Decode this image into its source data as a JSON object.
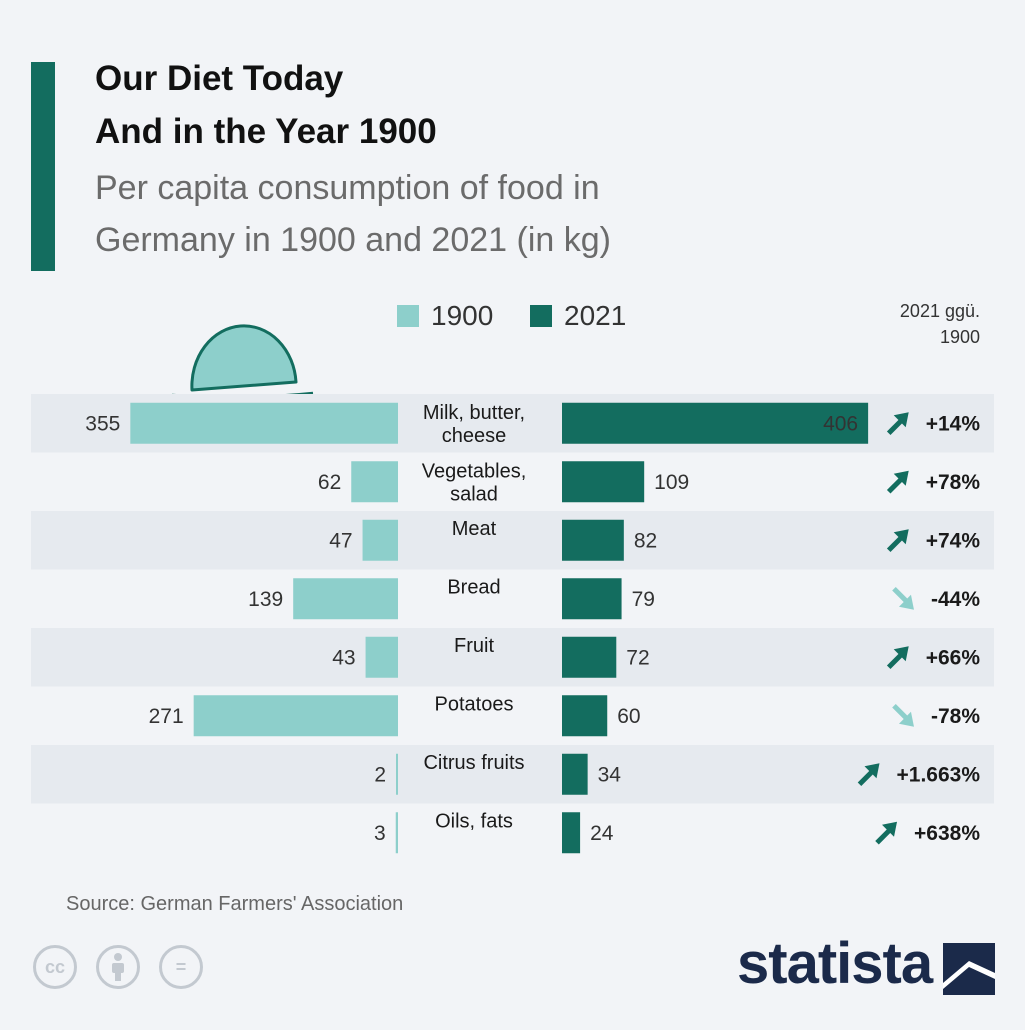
{
  "header": {
    "title_line1": "Our Diet Today",
    "title_line2": "And in the Year 1900",
    "subtitle_line1": "Per capita consumption of food in",
    "subtitle_line2": "Germany in 1900 and 2021 (in kg)",
    "change_header_line1": "2021 ggü.",
    "change_header_line2": "1900"
  },
  "legend": [
    {
      "label": "1900",
      "color": "#8dcfcb"
    },
    {
      "label": "2021",
      "color": "#136d5f"
    }
  ],
  "chart_data": {
    "type": "bar",
    "title": "Our Diet Today And in the Year 1900",
    "subtitle": "Per capita consumption of food in Germany in 1900 and 2021 (in kg)",
    "unit": "kg",
    "categories": [
      [
        "Milk, butter,",
        "cheese"
      ],
      [
        "Vegetables,",
        "salad"
      ],
      [
        "Meat"
      ],
      [
        "Bread"
      ],
      [
        "Fruit"
      ],
      [
        "Potatoes"
      ],
      [
        "Citrus fruits"
      ],
      [
        "Oils, fats"
      ]
    ],
    "series": [
      {
        "name": "1900",
        "color": "#8dcfcb",
        "values": [
          355,
          62,
          47,
          139,
          43,
          271,
          2,
          3
        ]
      },
      {
        "name": "2021",
        "color": "#136d5f",
        "values": [
          406,
          109,
          82,
          79,
          72,
          60,
          34,
          24
        ]
      }
    ],
    "change": [
      "+14%",
      "+78%",
      "+74%",
      "-44%",
      "+66%",
      "-78%",
      "+1.663%",
      "+638%"
    ],
    "up_color": "#136d5f",
    "down_color": "#8dcfcb"
  },
  "footer": {
    "source": "Source: German Farmers' Association",
    "logo": "statista",
    "license_icons": [
      "cc-icon",
      "attribution-icon",
      "no-derivatives-icon"
    ],
    "cc_text": "cc",
    "nd_text": "="
  }
}
